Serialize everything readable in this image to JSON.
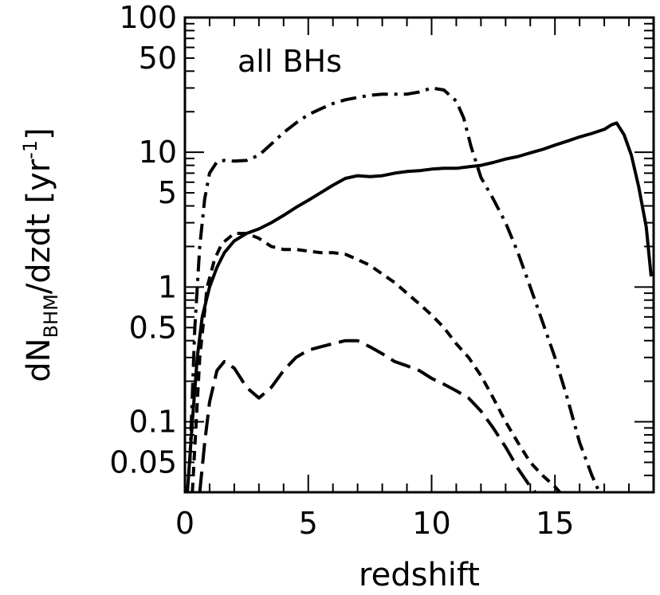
{
  "chart_data": {
    "type": "line",
    "xlabel": "redshift",
    "ylabel_parts": {
      "main": "dN",
      "sub": "BHM",
      "after": "/dzdt [yr",
      "sup": "-1",
      "close": "]"
    },
    "annotation": "all BHs",
    "xlim": [
      0,
      19
    ],
    "ylim": [
      0.03,
      100
    ],
    "yscale": "log",
    "xticks": [
      0,
      5,
      10,
      15
    ],
    "xtick_labels": [
      "0",
      "5",
      "10",
      "15"
    ],
    "yticks": [
      100,
      50,
      10,
      5,
      1,
      0.5,
      0.1,
      0.05
    ],
    "ytick_labels": [
      "100",
      "50",
      "10",
      "5",
      "1",
      "0.5",
      "0.1",
      "0.05"
    ],
    "grid": false,
    "series": [
      {
        "style": "solid",
        "x": [
          0.1,
          0.3,
          0.5,
          0.7,
          1.0,
          1.3,
          1.6,
          2.0,
          2.5,
          3.0,
          3.5,
          4.0,
          4.5,
          5.0,
          5.5,
          6.0,
          6.5,
          7.0,
          7.5,
          8.0,
          8.5,
          9.0,
          9.5,
          10.0,
          10.5,
          11.0,
          11.5,
          12.0,
          12.5,
          13.0,
          13.5,
          14.0,
          14.5,
          15.0,
          15.5,
          16.0,
          16.5,
          17.0,
          17.3,
          17.5,
          17.8,
          18.1,
          18.4,
          18.7,
          18.9
        ],
        "y": [
          0.03,
          0.1,
          0.3,
          0.6,
          1.0,
          1.4,
          1.8,
          2.2,
          2.5,
          2.7,
          3.0,
          3.4,
          3.9,
          4.4,
          5.0,
          5.7,
          6.4,
          6.7,
          6.6,
          6.7,
          7.0,
          7.2,
          7.3,
          7.5,
          7.6,
          7.6,
          7.8,
          8.0,
          8.4,
          8.9,
          9.3,
          9.9,
          10.5,
          11.3,
          12.1,
          13.0,
          13.8,
          14.8,
          16.0,
          16.5,
          13.5,
          9.5,
          5.5,
          2.8,
          1.2
        ]
      },
      {
        "style": "short-dash",
        "x": [
          0.3,
          0.6,
          0.9,
          1.2,
          1.5,
          2.0,
          2.5,
          3.0,
          3.5,
          4.0,
          4.5,
          5.0,
          5.5,
          6.0,
          6.5,
          7.0,
          7.5,
          8.0,
          8.5,
          9.0,
          9.5,
          10.0,
          10.5,
          11.0,
          11.5,
          12.0,
          12.5,
          13.0,
          13.5,
          14.0,
          14.5,
          15.0,
          15.2
        ],
        "y": [
          0.03,
          0.3,
          1.0,
          1.6,
          2.1,
          2.5,
          2.5,
          2.3,
          2.0,
          1.9,
          1.9,
          1.85,
          1.8,
          1.8,
          1.75,
          1.6,
          1.45,
          1.25,
          1.08,
          0.9,
          0.75,
          0.62,
          0.5,
          0.38,
          0.3,
          0.22,
          0.15,
          0.1,
          0.07,
          0.05,
          0.04,
          0.033,
          0.03
        ]
      },
      {
        "style": "long-dash",
        "x": [
          0.6,
          0.8,
          1.0,
          1.3,
          1.6,
          2.0,
          2.5,
          3.0,
          3.5,
          4.0,
          4.5,
          5.0,
          5.5,
          6.0,
          6.5,
          7.0,
          7.5,
          8.0,
          8.5,
          9.0,
          9.5,
          10.0,
          10.5,
          11.0,
          11.5,
          12.0,
          12.5,
          13.0,
          13.5,
          14.0,
          14.2
        ],
        "y": [
          0.03,
          0.07,
          0.14,
          0.24,
          0.28,
          0.25,
          0.18,
          0.15,
          0.18,
          0.24,
          0.3,
          0.34,
          0.36,
          0.38,
          0.4,
          0.4,
          0.36,
          0.32,
          0.28,
          0.26,
          0.24,
          0.21,
          0.19,
          0.17,
          0.15,
          0.12,
          0.09,
          0.065,
          0.045,
          0.033,
          0.03
        ]
      },
      {
        "style": "dash-dot",
        "x": [
          0.2,
          0.4,
          0.6,
          0.8,
          1.0,
          1.3,
          1.6,
          2.0,
          2.5,
          3.0,
          3.5,
          4.0,
          4.5,
          5.0,
          5.5,
          6.0,
          6.5,
          7.0,
          7.5,
          8.0,
          8.5,
          9.0,
          9.5,
          10.0,
          10.5,
          11.0,
          11.3,
          11.6,
          12.0,
          12.5,
          13.0,
          13.5,
          14.0,
          14.5,
          15.0,
          15.5,
          16.0,
          16.5,
          16.8
        ],
        "y": [
          0.05,
          0.5,
          2.0,
          4.5,
          7.0,
          8.5,
          8.7,
          8.6,
          8.7,
          9.5,
          11.5,
          14.0,
          16.5,
          19.0,
          21.0,
          23.0,
          24.5,
          25.5,
          26.5,
          27.0,
          27.0,
          27.0,
          28.0,
          30.0,
          29.0,
          24.0,
          18.0,
          11.0,
          6.5,
          4.5,
          3.0,
          1.8,
          1.0,
          0.55,
          0.3,
          0.15,
          0.07,
          0.04,
          0.03
        ]
      }
    ]
  }
}
